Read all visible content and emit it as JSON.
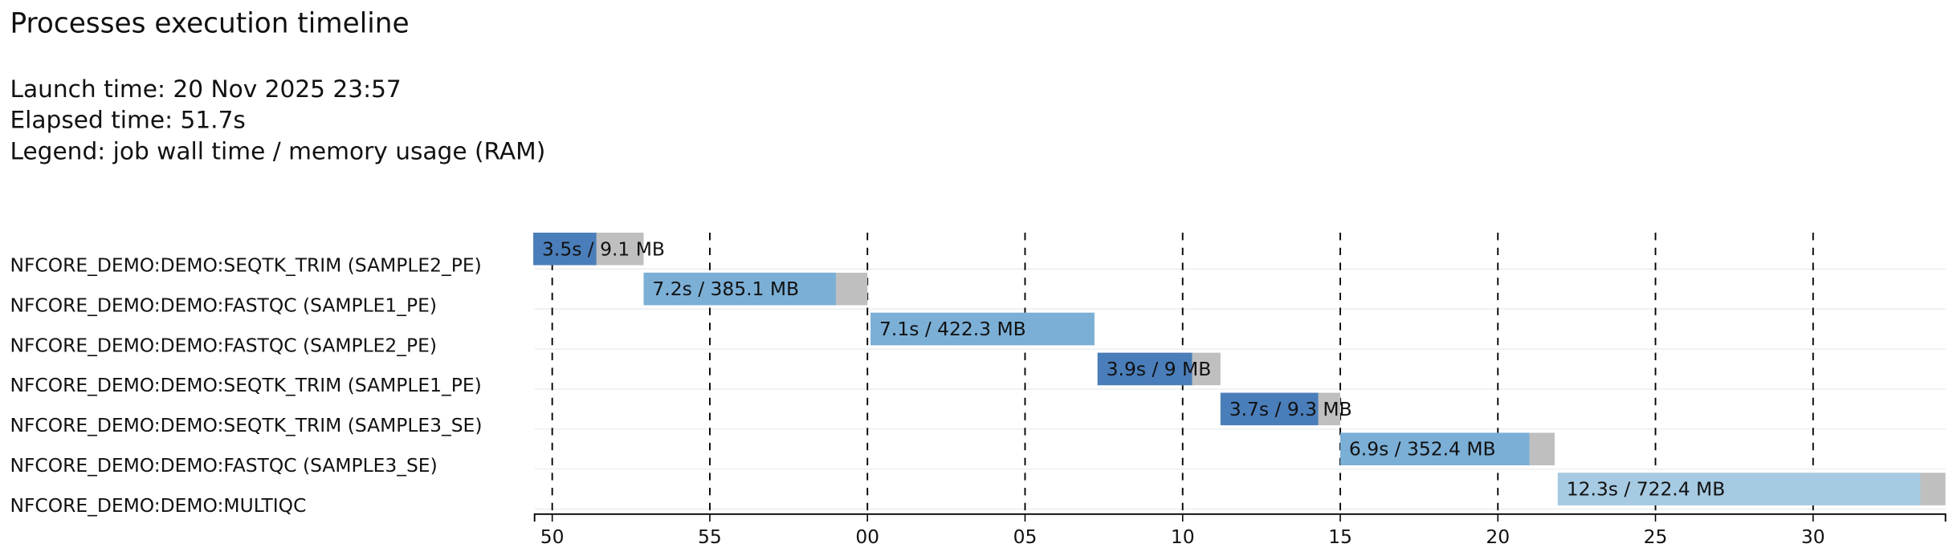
{
  "chart_data": {
    "type": "timeline",
    "title": "Processes execution timeline",
    "launch_time": "Launch time: 20 Nov 2025 23:57",
    "elapsed_time": "Elapsed time: 51.7s",
    "legend": "Legend: job wall time / memory usage (RAM)",
    "xlim": [
      49.44,
      94.2
    ],
    "xticks": [
      50,
      55,
      {
        "value": 60,
        "label": "00"
      },
      {
        "value": 65,
        "label": "05"
      },
      {
        "value": 70,
        "label": "10"
      },
      {
        "value": 75,
        "label": "15"
      },
      {
        "value": 80,
        "label": "20"
      },
      {
        "value": 85,
        "label": "25"
      },
      {
        "value": 90,
        "label": "30"
      }
    ],
    "pending_color": "#bfbfbf",
    "tasks": [
      {
        "name": "NFCORE_DEMO:DEMO:SEQTK_TRIM (SAMPLE2_PE)",
        "label": "3.5s / 9.1 MB",
        "start": 49.4,
        "run_end": 51.4,
        "end": 52.9,
        "color": "#4a7eba"
      },
      {
        "name": "NFCORE_DEMO:DEMO:FASTQC (SAMPLE1_PE)",
        "label": "7.2s / 385.1 MB",
        "start": 52.9,
        "run_end": 59.0,
        "end": 60.0,
        "color": "#7bafd6"
      },
      {
        "name": "NFCORE_DEMO:DEMO:FASTQC (SAMPLE2_PE)",
        "label": "7.1s / 422.3 MB",
        "start": 60.1,
        "run_end": 67.2,
        "end": 67.2,
        "color": "#7bafd6"
      },
      {
        "name": "NFCORE_DEMO:DEMO:SEQTK_TRIM (SAMPLE1_PE)",
        "label": "3.9s / 9 MB",
        "start": 67.3,
        "run_end": 70.3,
        "end": 71.2,
        "color": "#4a7eba"
      },
      {
        "name": "NFCORE_DEMO:DEMO:SEQTK_TRIM (SAMPLE3_SE)",
        "label": "3.7s / 9.3 MB",
        "start": 71.2,
        "run_end": 74.3,
        "end": 75.0,
        "color": "#4a7eba"
      },
      {
        "name": "NFCORE_DEMO:DEMO:FASTQC (SAMPLE3_SE)",
        "label": "6.9s / 352.4 MB",
        "start": 75.0,
        "run_end": 81.0,
        "end": 81.8,
        "color": "#7bafd6"
      },
      {
        "name": "NFCORE_DEMO:DEMO:MULTIQC",
        "label": "12.3s / 722.4 MB",
        "start": 81.9,
        "run_end": 93.4,
        "end": 94.2,
        "color": "#a6cae2"
      }
    ]
  }
}
